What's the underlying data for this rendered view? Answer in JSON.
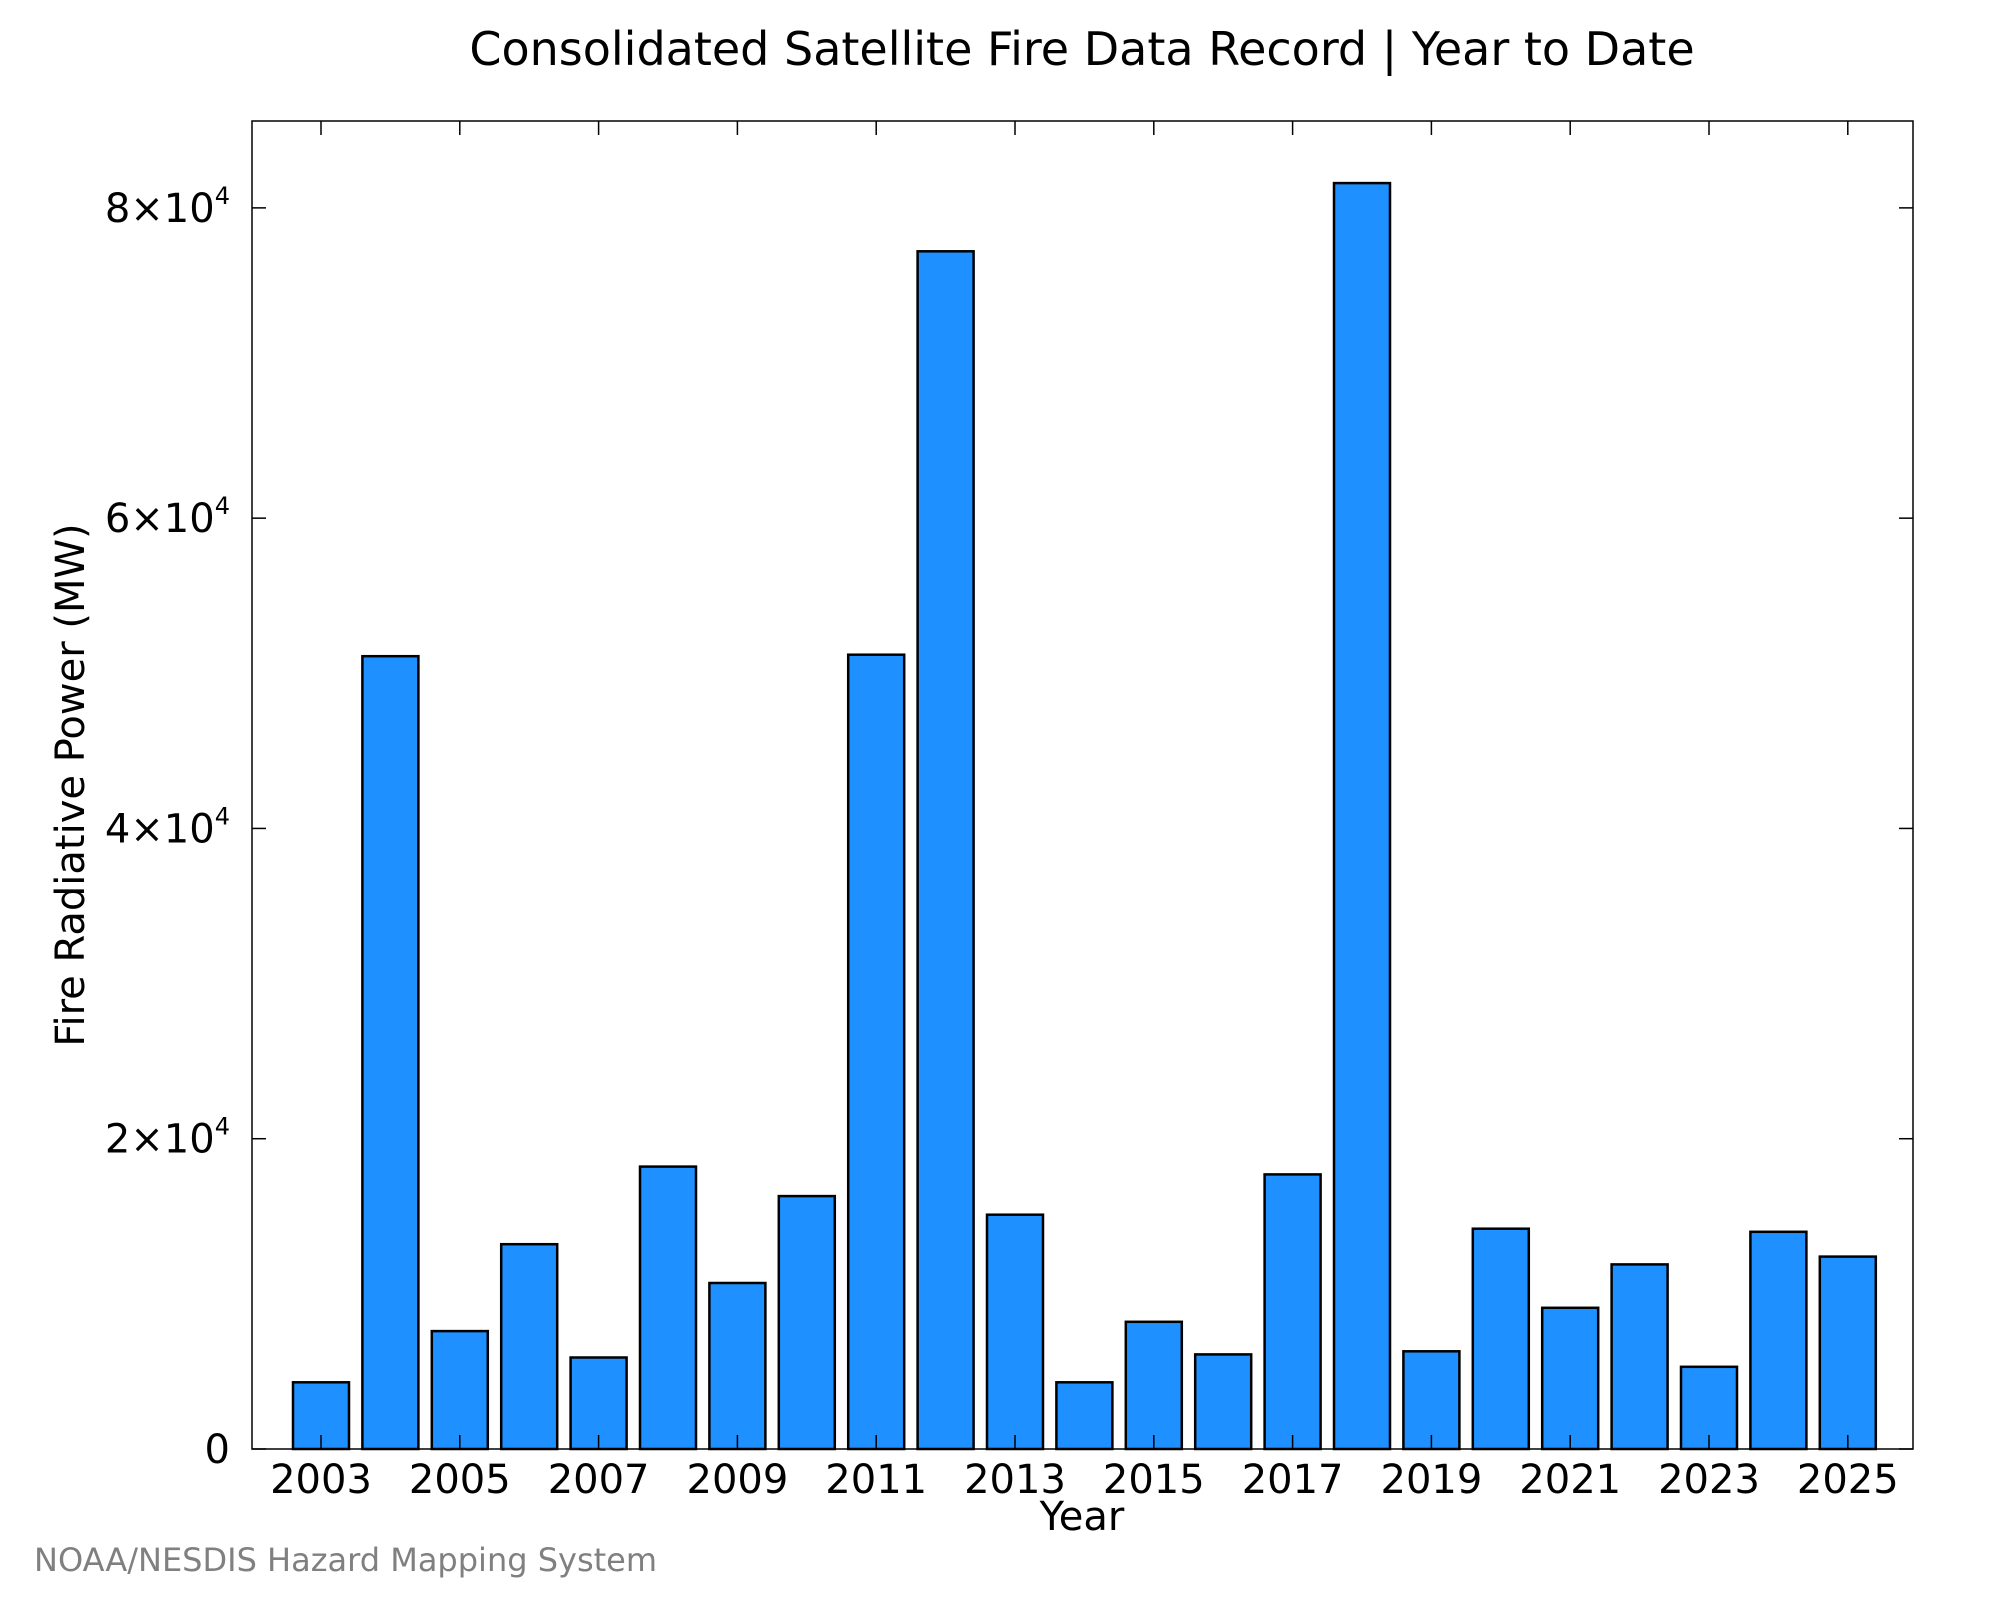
{
  "chart_data": {
    "type": "bar",
    "title": "Consolidated Satellite Fire Data Record | Year to Date",
    "xlabel": "Year",
    "ylabel": "Fire Radiative Power (MW)",
    "categories": [
      "2003",
      "2004",
      "2005",
      "2006",
      "2007",
      "2008",
      "2009",
      "2010",
      "2011",
      "2012",
      "2013",
      "2014",
      "2015",
      "2016",
      "2017",
      "2018",
      "2019",
      "2020",
      "2021",
      "2022",
      "2023",
      "2024",
      "2025"
    ],
    "values": [
      4300,
      51100,
      7600,
      13200,
      5900,
      18200,
      10700,
      16300,
      51200,
      77200,
      15100,
      4300,
      8200,
      6100,
      17700,
      81600,
      6300,
      14200,
      9100,
      11900,
      5300,
      14000,
      12400
    ],
    "x_tick_labels": [
      "2003",
      "2005",
      "2007",
      "2009",
      "2011",
      "2013",
      "2015",
      "2017",
      "2019",
      "2021",
      "2023",
      "2025"
    ],
    "y_ticks": [
      {
        "value": 0,
        "label": "0",
        "mantissa": "",
        "exponent": ""
      },
      {
        "value": 20000,
        "label": "",
        "mantissa": "2×10",
        "exponent": "4"
      },
      {
        "value": 40000,
        "label": "",
        "mantissa": "4×10",
        "exponent": "4"
      },
      {
        "value": 60000,
        "label": "",
        "mantissa": "6×10",
        "exponent": "4"
      },
      {
        "value": 80000,
        "label": "",
        "mantissa": "8×10",
        "exponent": "4"
      }
    ],
    "ylim": [
      0,
      85600
    ],
    "grid": false,
    "legend": "none",
    "bar_color": "#1e90ff",
    "bar_edge_color": "#000000"
  },
  "credit": "NOAA/NESDIS Hazard Mapping System"
}
